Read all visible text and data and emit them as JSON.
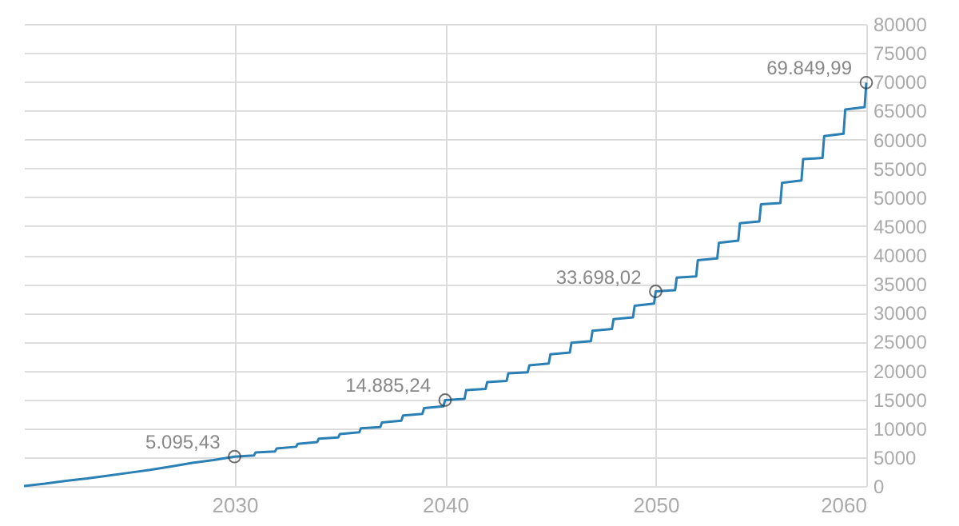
{
  "chart_data": {
    "type": "line",
    "x": [
      2020,
      2021,
      2022,
      2023,
      2024,
      2025,
      2026,
      2027,
      2028,
      2029,
      2030,
      2030.92,
      2031,
      2031.92,
      2032,
      2032.92,
      2033,
      2033.92,
      2034,
      2034.92,
      2035,
      2035.92,
      2036,
      2036.92,
      2037,
      2037.92,
      2038,
      2038.92,
      2039,
      2039.92,
      2040,
      2040.92,
      2041,
      2041.92,
      2042,
      2042.92,
      2043,
      2043.92,
      2044,
      2044.92,
      2045,
      2045.92,
      2046,
      2046.92,
      2047,
      2047.92,
      2048,
      2048.92,
      2049,
      2049.92,
      2050,
      2050.92,
      2051,
      2051.92,
      2052,
      2052.92,
      2053,
      2053.92,
      2054,
      2054.92,
      2055,
      2055.92,
      2056,
      2056.92,
      2057,
      2057.92,
      2058,
      2058.92,
      2059,
      2059.92,
      2060
    ],
    "series": [
      {
        "color": "#2a7fb5",
        "values": [
          0,
          400,
          900,
          1300,
          1800,
          2300,
          2800,
          3400,
          4000,
          4500,
          5095.43,
          5300,
          5800,
          6000,
          6500,
          6800,
          7300,
          7600,
          8200,
          8400,
          9000,
          9300,
          10000,
          10200,
          11000,
          11300,
          12200,
          12500,
          13500,
          13800,
          14885.24,
          15100,
          16600,
          16800,
          18000,
          18200,
          19500,
          19700,
          20900,
          21200,
          22800,
          23100,
          24800,
          25100,
          26900,
          27200,
          28900,
          29200,
          31200,
          31600,
          33698.02,
          33900,
          36100,
          36300,
          39100,
          39400,
          42100,
          42500,
          45500,
          45800,
          48800,
          49000,
          52500,
          52900,
          56600,
          56800,
          60600,
          61000,
          65200,
          65600,
          69849.99
        ]
      }
    ],
    "xlim": [
      2020,
      2060
    ],
    "xticks": [
      2030,
      2040,
      2050,
      2060
    ],
    "ylim": [
      0,
      80000
    ],
    "yticks": [
      0,
      5000,
      10000,
      15000,
      20000,
      25000,
      30000,
      35000,
      40000,
      45000,
      50000,
      55000,
      60000,
      65000,
      70000,
      75000,
      80000
    ],
    "grid": true,
    "annotations": [
      {
        "text": "5.095,43",
        "x": 2030,
        "y": 5095.43
      },
      {
        "text": "14.885,24",
        "x": 2040,
        "y": 14885.24
      },
      {
        "text": "33.698,02",
        "x": 2050,
        "y": 33698.02
      },
      {
        "text": "69.849,99",
        "x": 2060,
        "y": 69849.99
      }
    ]
  }
}
